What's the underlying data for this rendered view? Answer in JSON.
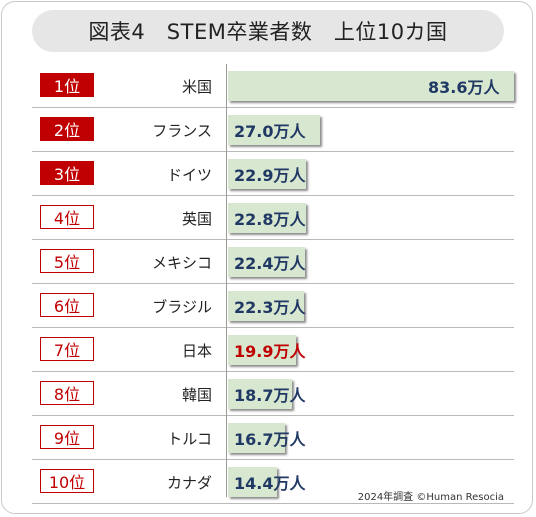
{
  "title": "図表4　STEM卒業者数　上位10カ国",
  "source": "2024年調査 ©Human Resocia",
  "chart_data": {
    "type": "bar",
    "orientation": "horizontal",
    "title": "図表4　STEM卒業者数　上位10カ国",
    "unit": "万人",
    "rows": [
      {
        "rank": "1位",
        "country": "米国",
        "value": 83.6,
        "label": "83.6万人",
        "highlight_rank": true,
        "highlight_value": false
      },
      {
        "rank": "2位",
        "country": "フランス",
        "value": 27.0,
        "label": "27.0万人",
        "highlight_rank": true,
        "highlight_value": false
      },
      {
        "rank": "3位",
        "country": "ドイツ",
        "value": 22.9,
        "label": "22.9万人",
        "highlight_rank": true,
        "highlight_value": false
      },
      {
        "rank": "4位",
        "country": "英国",
        "value": 22.8,
        "label": "22.8万人",
        "highlight_rank": false,
        "highlight_value": false
      },
      {
        "rank": "5位",
        "country": "メキシコ",
        "value": 22.4,
        "label": "22.4万人",
        "highlight_rank": false,
        "highlight_value": false
      },
      {
        "rank": "6位",
        "country": "ブラジル",
        "value": 22.3,
        "label": "22.3万人",
        "highlight_rank": false,
        "highlight_value": false
      },
      {
        "rank": "7位",
        "country": "日本",
        "value": 19.9,
        "label": "19.9万人",
        "highlight_rank": false,
        "highlight_value": true
      },
      {
        "rank": "8位",
        "country": "韓国",
        "value": 18.7,
        "label": "18.7万人",
        "highlight_rank": false,
        "highlight_value": false
      },
      {
        "rank": "9位",
        "country": "トルコ",
        "value": 16.7,
        "label": "16.7万人",
        "highlight_rank": false,
        "highlight_value": false
      },
      {
        "rank": "10位",
        "country": "カナダ",
        "value": 14.4,
        "label": "14.4万人",
        "highlight_rank": false,
        "highlight_value": false
      }
    ],
    "xlim": [
      0,
      83.6
    ],
    "grid": false,
    "colors": {
      "bar": "#d8e7cf",
      "value_text": "#1f3864",
      "japan_value_text": "#c00000",
      "rank_accent": "#c00000"
    }
  }
}
